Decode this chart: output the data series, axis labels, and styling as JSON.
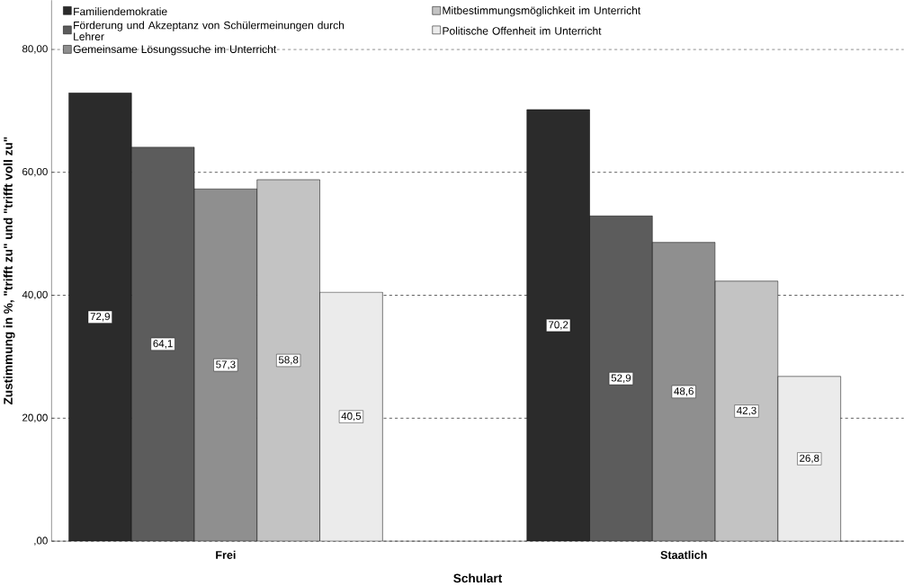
{
  "chart_data": {
    "type": "bar",
    "xlabel": "Schulart",
    "ylabel": "Zustimmung in %, \"trifft zu\" und \"trifft voll zu\"",
    "categories": [
      "Frei",
      "Staatlich"
    ],
    "series": [
      {
        "name": "Familiendemokratie",
        "color": "#2b2b2b",
        "values": [
          72.9,
          70.2
        ],
        "value_labels": [
          "72,9",
          "70,2"
        ]
      },
      {
        "name": "Förderung und Akzeptanz von Schülermeinungen durch Lehrer",
        "color": "#5c5c5c",
        "values": [
          64.1,
          52.9
        ],
        "value_labels": [
          "64,1",
          "52,9"
        ]
      },
      {
        "name": "Gemeinsame Lösungssuche im Unterricht",
        "color": "#8f8f8f",
        "values": [
          57.3,
          48.6
        ],
        "value_labels": [
          "57,3",
          "48,6"
        ]
      },
      {
        "name": "Mitbestimmungsmöglichkeit im Unterricht",
        "color": "#c3c3c3",
        "values": [
          58.8,
          42.3
        ],
        "value_labels": [
          "58,8",
          "42,3"
        ]
      },
      {
        "name": "Politische Offenheit im Unterricht",
        "color": "#ebebeb",
        "values": [
          40.5,
          26.8
        ],
        "value_labels": [
          "40,5",
          "26,8"
        ]
      }
    ],
    "ylim": [
      0,
      88
    ],
    "yticks": [
      {
        "value": 0,
        "label": ",00"
      },
      {
        "value": 20,
        "label": "20,00"
      },
      {
        "value": 40,
        "label": "40,00"
      },
      {
        "value": 60,
        "label": "60,00"
      },
      {
        "value": 80,
        "label": "80,00"
      }
    ],
    "grid": "y",
    "legend": "top left"
  }
}
